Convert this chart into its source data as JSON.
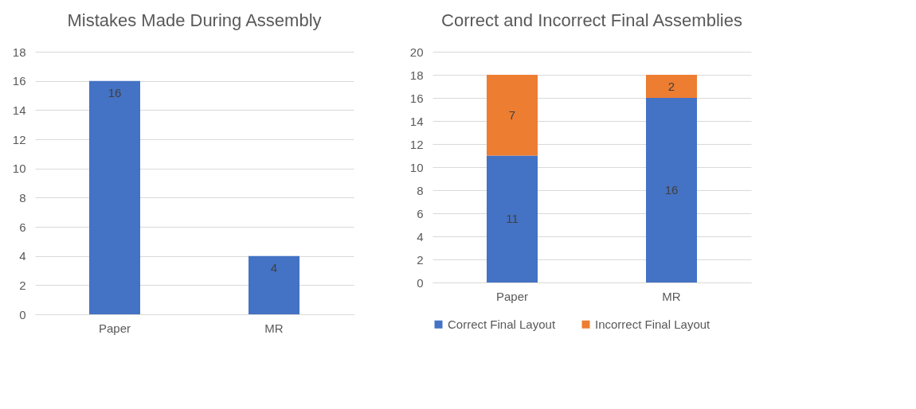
{
  "chart_data": [
    {
      "type": "bar",
      "title": "Mistakes Made During Assembly",
      "categories": [
        "Paper",
        "MR"
      ],
      "values": [
        16,
        4
      ],
      "color": "#4472c4",
      "ylim": [
        0,
        18
      ],
      "yticks": [
        0,
        2,
        4,
        6,
        8,
        10,
        12,
        14,
        16,
        18
      ],
      "grid": "y",
      "data_labels": true
    },
    {
      "type": "bar",
      "title": "Correct and Incorrect Final Assemblies",
      "categories": [
        "Paper",
        "MR"
      ],
      "stacked": true,
      "series": [
        {
          "name": "Correct Final Layout",
          "color": "#4472c4",
          "values": [
            11,
            16
          ]
        },
        {
          "name": "Incorrect Final Layout",
          "color": "#ed7d31",
          "values": [
            7,
            2
          ]
        }
      ],
      "ylim": [
        0,
        20
      ],
      "yticks": [
        0,
        2,
        4,
        6,
        8,
        10,
        12,
        14,
        16,
        18,
        20
      ],
      "grid": "y",
      "legend": "bottom",
      "data_labels": true
    }
  ]
}
